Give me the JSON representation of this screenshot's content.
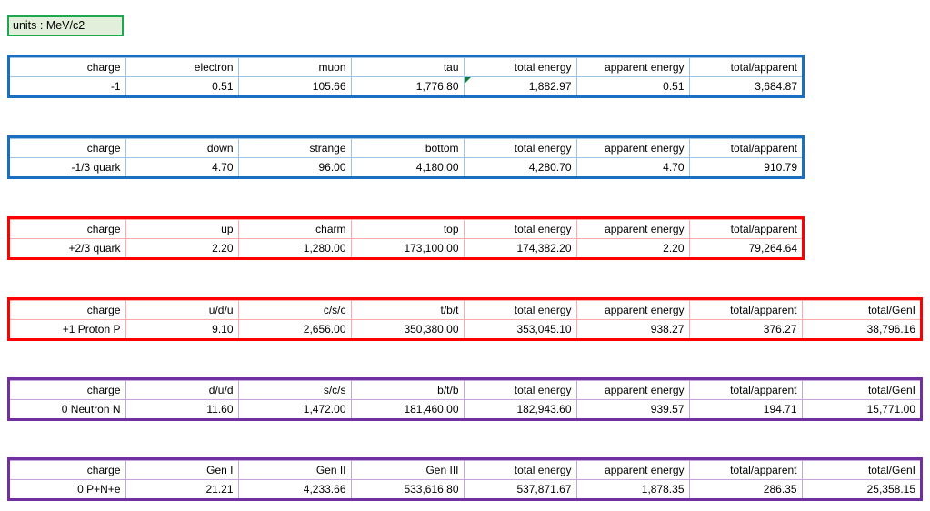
{
  "units_box": {
    "label": "units : MeV/c2",
    "border_color": "#1fa750",
    "fill_color": "#e2efda"
  },
  "note_triangle_color": "#107c41",
  "tables": [
    {
      "name": "leptons",
      "border_color": "#1b6fc0",
      "grid_color": "#9dc3e6",
      "columns": [
        "charge",
        "electron",
        "muon",
        "tau",
        "total energy",
        "apparent energy",
        "total/apparent"
      ],
      "values": [
        "-1",
        "0.51",
        "105.66",
        "1,776.80",
        "1,882.97",
        "0.51",
        "3,684.87"
      ],
      "note_cell": 4
    },
    {
      "name": "down-type-quarks",
      "border_color": "#1b6fc0",
      "grid_color": "#9dc3e6",
      "columns": [
        "charge",
        "down",
        "strange",
        "bottom",
        "total energy",
        "apparent energy",
        "total/apparent"
      ],
      "values": [
        "-1/3 quark",
        "4.70",
        "96.00",
        "4,180.00",
        "4,280.70",
        "4.70",
        "910.79"
      ]
    },
    {
      "name": "up-type-quarks",
      "border_color": "#ff0000",
      "grid_color": "#ffaaaa",
      "columns": [
        "charge",
        "up",
        "charm",
        "top",
        "total energy",
        "apparent energy",
        "total/apparent"
      ],
      "values": [
        "+2/3 quark",
        "2.20",
        "1,280.00",
        "173,100.00",
        "174,382.20",
        "2.20",
        "79,264.64"
      ]
    },
    {
      "name": "proton",
      "border_color": "#ff0000",
      "grid_color": "#ffaaaa",
      "columns": [
        "charge",
        "u/d/u",
        "c/s/c",
        "t/b/t",
        "total energy",
        "apparent energy",
        "total/apparent",
        "total/GenI"
      ],
      "values": [
        "+1 Proton P",
        "9.10",
        "2,656.00",
        "350,380.00",
        "353,045.10",
        "938.27",
        "376.27",
        "38,796.16"
      ]
    },
    {
      "name": "neutron",
      "border_color": "#7030a0",
      "grid_color": "#c5a3dc",
      "columns": [
        "charge",
        "d/u/d",
        "s/c/s",
        "b/t/b",
        "total energy",
        "apparent energy",
        "total/apparent",
        "total/GenI"
      ],
      "values": [
        "0 Neutron N",
        "11.60",
        "1,472.00",
        "181,460.00",
        "182,943.60",
        "939.57",
        "194.71",
        "15,771.00"
      ]
    },
    {
      "name": "atom-p-n-e",
      "border_color": "#7030a0",
      "grid_color": "#c5a3dc",
      "columns": [
        "charge",
        "Gen I",
        "Gen II",
        "Gen III",
        "total energy",
        "apparent energy",
        "total/apparent",
        "total/GenI"
      ],
      "values": [
        "0 P+N+e",
        "21.21",
        "4,233.66",
        "533,616.80",
        "537,871.67",
        "1,878.35",
        "286.35",
        "25,358.15"
      ]
    }
  ]
}
